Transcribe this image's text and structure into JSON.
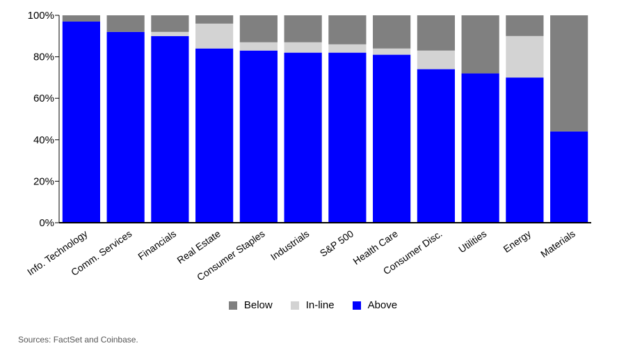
{
  "colors": {
    "below": "#808080",
    "inline": "#d3d3d3",
    "above": "#0000ff"
  },
  "chart_data": {
    "type": "bar",
    "stacked": true,
    "categories": [
      "Info. Technology",
      "Comm. Services",
      "Financials",
      "Real Estate",
      "Consumer Staples",
      "Industrials",
      "S&P 500",
      "Health Care",
      "Consumer Disc.",
      "Utilities",
      "Energy",
      "Materials"
    ],
    "series": [
      {
        "name": "Above",
        "values": [
          97,
          92,
          90,
          84,
          83,
          82,
          82,
          81,
          74,
          72,
          70,
          44
        ],
        "color": "#0000ff"
      },
      {
        "name": "In-line",
        "values": [
          0,
          0,
          2,
          12,
          4,
          5,
          4,
          3,
          9,
          0,
          20,
          0
        ],
        "color": "#d3d3d3"
      },
      {
        "name": "Below",
        "values": [
          3,
          8,
          8,
          4,
          13,
          13,
          14,
          16,
          17,
          28,
          10,
          56
        ],
        "color": "#808080"
      }
    ],
    "yticks": [
      "0%",
      "20%",
      "40%",
      "60%",
      "80%",
      "100%"
    ],
    "ylim": [
      0,
      100
    ],
    "legend_position": "bottom-center"
  },
  "legend": {
    "below": "Below",
    "inline": "In-line",
    "above": "Above"
  },
  "source": "Sources: FactSet and Coinbase."
}
